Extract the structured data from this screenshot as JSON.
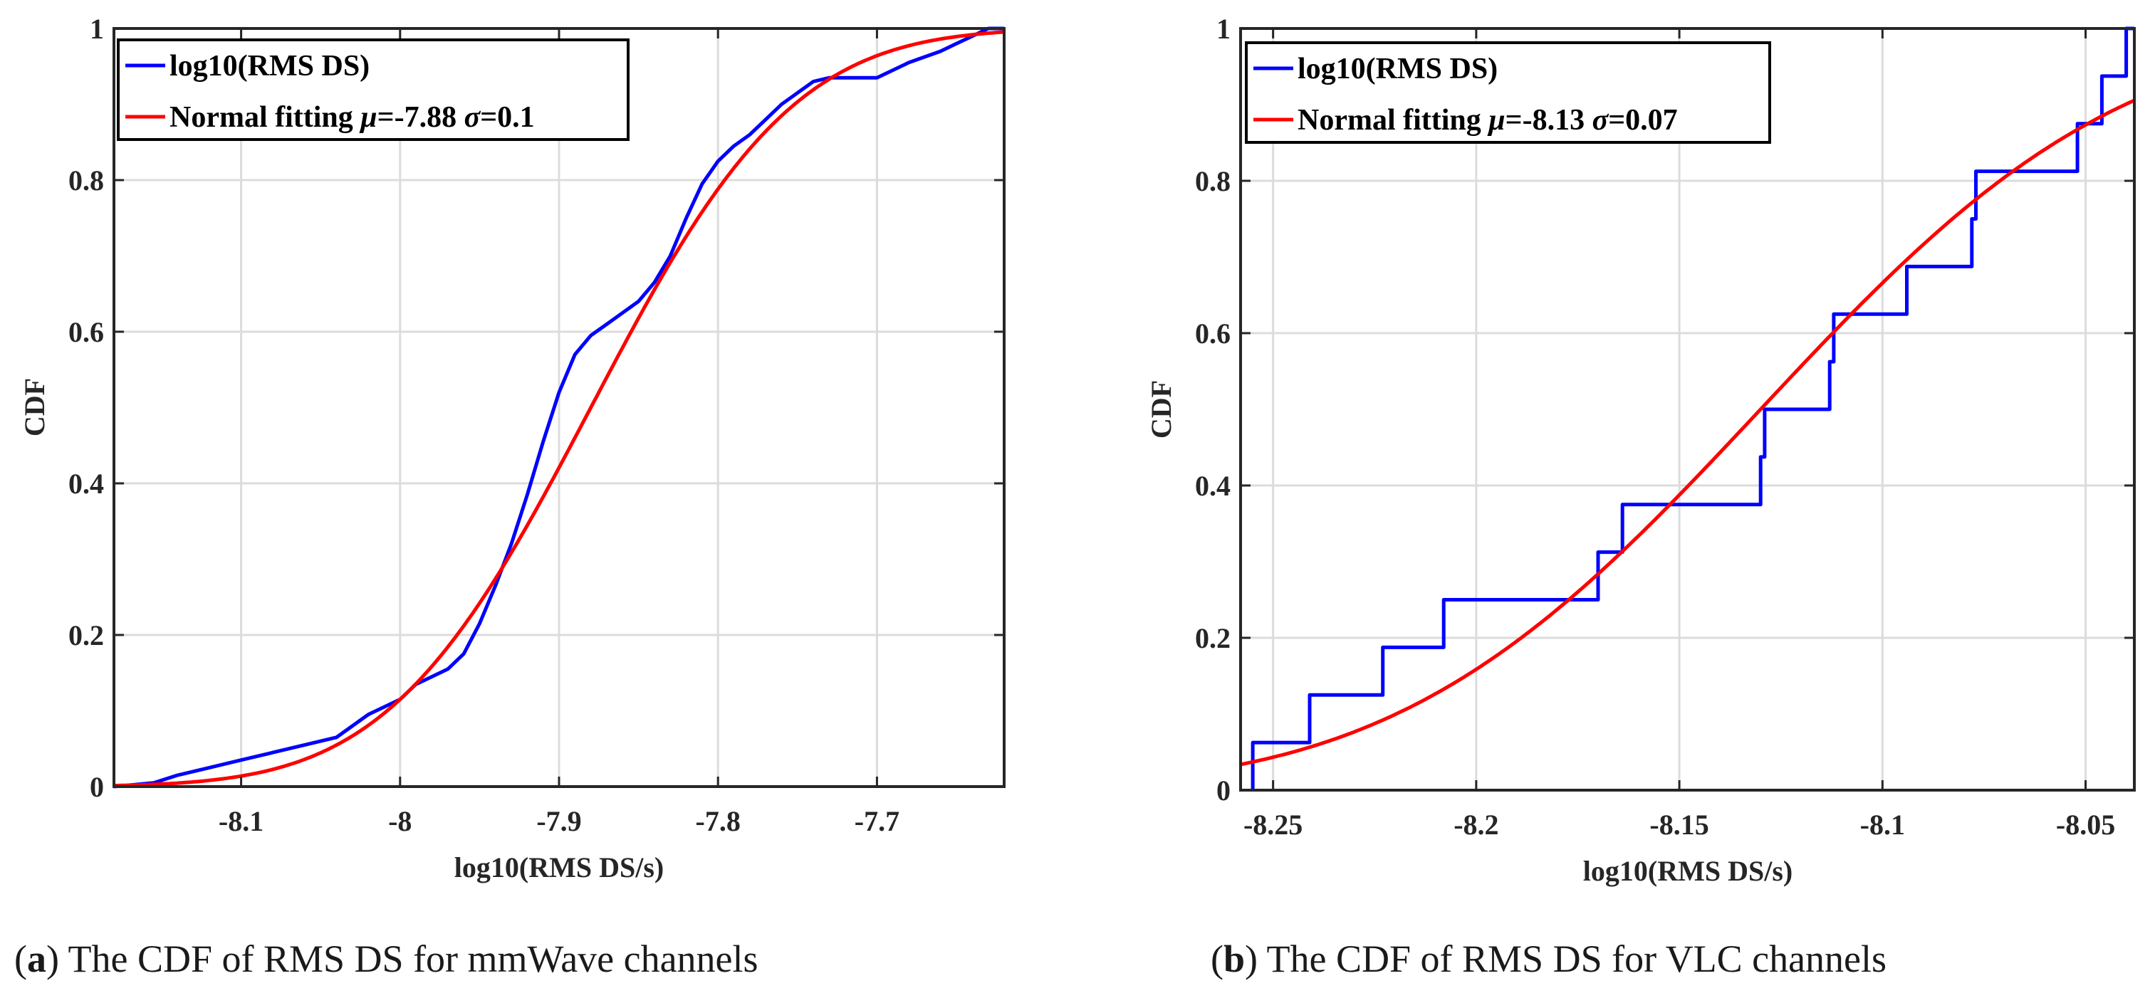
{
  "chart_data": [
    {
      "type": "line",
      "panel_label": "a",
      "caption_text": "The CDF of RMS DS for mmWave channels",
      "title": "",
      "xlabel": "log10(RMS DS/s)",
      "ylabel": "CDF",
      "xlim": [
        -8.18,
        -7.62
      ],
      "ylim": [
        0,
        1
      ],
      "xticks": [
        -8.1,
        -8.0,
        -7.9,
        -7.8,
        -7.7
      ],
      "xtick_labels": [
        "-8.1",
        "-8",
        "-7.9",
        "-7.8",
        "-7.7"
      ],
      "yticks": [
        0,
        0.2,
        0.4,
        0.6,
        0.8,
        1
      ],
      "ytick_labels": [
        "0",
        "0.2",
        "0.4",
        "0.6",
        "0.8",
        "1"
      ],
      "grid": true,
      "legend_position": "top-left",
      "series": [
        {
          "name": "log10(RMS DS)",
          "color": "#0000ff",
          "style": "line",
          "x": [
            -8.18,
            -8.155,
            -8.14,
            -8.12,
            -8.1,
            -8.08,
            -8.06,
            -8.04,
            -8.03,
            -8.02,
            -8.0,
            -7.99,
            -7.98,
            -7.97,
            -7.96,
            -7.95,
            -7.94,
            -7.93,
            -7.92,
            -7.91,
            -7.9,
            -7.89,
            -7.88,
            -7.87,
            -7.86,
            -7.85,
            -7.84,
            -7.83,
            -7.82,
            -7.81,
            -7.8,
            -7.79,
            -7.78,
            -7.77,
            -7.76,
            -7.75,
            -7.74,
            -7.73,
            -7.72,
            -7.7,
            -7.69,
            -7.68,
            -7.66,
            -7.65,
            -7.64,
            -7.63,
            -7.62
          ],
          "y": [
            0.0,
            0.005,
            0.015,
            0.025,
            0.035,
            0.045,
            0.055,
            0.065,
            0.08,
            0.095,
            0.115,
            0.135,
            0.145,
            0.155,
            0.175,
            0.215,
            0.265,
            0.32,
            0.385,
            0.455,
            0.52,
            0.57,
            0.595,
            0.61,
            0.625,
            0.64,
            0.665,
            0.7,
            0.75,
            0.795,
            0.825,
            0.845,
            0.86,
            0.88,
            0.9,
            0.915,
            0.93,
            0.935,
            0.935,
            0.935,
            0.945,
            0.955,
            0.97,
            0.98,
            0.99,
            1.0,
            1.0
          ]
        },
        {
          "name": "Normal fitting μ=-7.88 σ=0.1",
          "name_prefix": "Normal fitting ",
          "name_mu": "μ",
          "name_mu_value": "=-7.88 ",
          "name_sigma": "σ",
          "name_sigma_value": "=0.1",
          "color": "#ff0000",
          "style": "line",
          "mu": -7.88,
          "sigma": 0.1
        }
      ]
    },
    {
      "type": "line",
      "panel_label": "b",
      "caption_text": "The CDF of RMS DS for VLC channels",
      "title": "",
      "xlabel": "log10(RMS DS/s)",
      "ylabel": "CDF",
      "xlim": [
        -8.258,
        -8.038
      ],
      "ylim": [
        0,
        1
      ],
      "xticks": [
        -8.25,
        -8.2,
        -8.15,
        -8.1,
        -8.05
      ],
      "xtick_labels": [
        "-8.25",
        "-8.2",
        "-8.15",
        "-8.1",
        "-8.05"
      ],
      "yticks": [
        0,
        0.2,
        0.4,
        0.6,
        0.8,
        1
      ],
      "ytick_labels": [
        "0",
        "0.2",
        "0.4",
        "0.6",
        "0.8",
        "1"
      ],
      "grid": true,
      "legend_position": "top-left",
      "series": [
        {
          "name": "log10(RMS DS)",
          "color": "#0000ff",
          "style": "step",
          "x": [
            -8.255,
            -8.241,
            -8.223,
            -8.208,
            -8.17,
            -8.164,
            -8.13,
            -8.129,
            -8.113,
            -8.112,
            -8.094,
            -8.078,
            -8.077,
            -8.052,
            -8.046,
            -8.04
          ],
          "y": [
            0.0625,
            0.125,
            0.1875,
            0.25,
            0.3125,
            0.375,
            0.4375,
            0.5,
            0.5625,
            0.625,
            0.6875,
            0.75,
            0.8125,
            0.875,
            0.9375,
            1.0
          ]
        },
        {
          "name": "Normal fitting μ=-8.13 σ=0.07",
          "name_prefix": "Normal fitting ",
          "name_mu": "μ",
          "name_mu_value": "=-8.13 ",
          "name_sigma": "σ",
          "name_sigma_value": "=0.07",
          "color": "#ff0000",
          "style": "line",
          "mu": -8.13,
          "sigma": 0.07
        }
      ]
    }
  ]
}
